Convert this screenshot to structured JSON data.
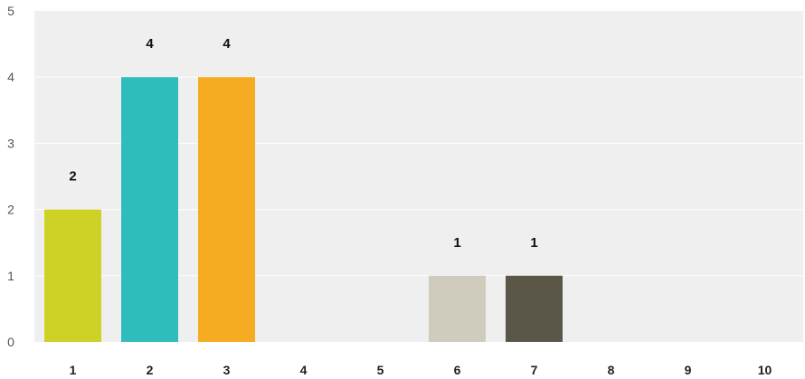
{
  "chart_data": {
    "type": "bar",
    "categories": [
      "1",
      "2",
      "3",
      "4",
      "5",
      "6",
      "7",
      "8",
      "9",
      "10"
    ],
    "values": [
      2,
      4,
      4,
      0,
      0,
      1,
      1,
      0,
      0,
      0
    ],
    "data_labels": [
      "2",
      "4",
      "4",
      "",
      "",
      "1",
      "1",
      "",
      "",
      ""
    ],
    "colors": [
      "#cfd226",
      "#2fbcbd",
      "#f5ab22",
      "#2fbcbd",
      "#2fbcbd",
      "#cfcbbd",
      "#5a5748",
      "#2fbcbd",
      "#2fbcbd",
      "#2fbcbd"
    ],
    "yticks": [
      "0",
      "1",
      "2",
      "3",
      "4",
      "5"
    ],
    "ylim": [
      0,
      5
    ],
    "grid": true,
    "plot_background": "#efefef",
    "gridline_color": "#ffffff",
    "title": "",
    "xlabel": "",
    "ylabel": ""
  }
}
